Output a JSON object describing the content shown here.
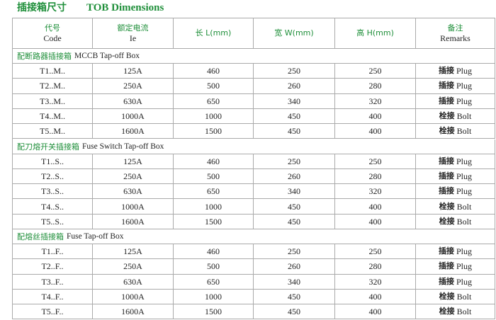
{
  "header": {
    "title_cn": "插接箱尺寸",
    "title_en": "TOB Dimensions"
  },
  "table": {
    "columns": [
      [
        "代号",
        "Code"
      ],
      [
        "额定电流",
        "Ie"
      ],
      [
        "长 L(mm)"
      ],
      [
        "宽 W(mm)"
      ],
      [
        "高 H(mm)"
      ],
      [
        "备注",
        "Remarks"
      ]
    ],
    "sections": [
      {
        "title_cn": "配断路器插接箱",
        "title_en": "MCCB Tap-off Box",
        "rows": [
          [
            "T1..M..",
            "125A",
            460,
            250,
            250,
            [
              "插接",
              "Plug"
            ]
          ],
          [
            "T2..M..",
            "250A",
            500,
            260,
            280,
            [
              "插接",
              "Plug"
            ]
          ],
          [
            "T3..M..",
            "630A",
            650,
            340,
            320,
            [
              "插接",
              "Plug"
            ]
          ],
          [
            "T4..M..",
            "1000A",
            1000,
            450,
            400,
            [
              "栓接",
              "Bolt"
            ]
          ],
          [
            "T5..M..",
            "1600A",
            1500,
            450,
            400,
            [
              "栓接",
              "Bolt"
            ]
          ]
        ]
      },
      {
        "title_cn": "配刀熔开关插接箱",
        "title_en": "Fuse Switch Tap-off Box",
        "rows": [
          [
            "T1..S..",
            "125A",
            460,
            250,
            250,
            [
              "插接",
              "Plug"
            ]
          ],
          [
            "T2..S..",
            "250A",
            500,
            260,
            280,
            [
              "插接",
              "Plug"
            ]
          ],
          [
            "T3..S..",
            "630A",
            650,
            340,
            320,
            [
              "插接",
              "Plug"
            ]
          ],
          [
            "T4..S..",
            "1000A",
            1000,
            450,
            400,
            [
              "栓接",
              "Bolt"
            ]
          ],
          [
            "T5..S..",
            "1600A",
            1500,
            450,
            400,
            [
              "栓接",
              "Bolt"
            ]
          ]
        ]
      },
      {
        "title_cn": "配熔丝插接箱",
        "title_en": "Fuse Tap-off Box",
        "rows": [
          [
            "T1..F..",
            "125A",
            460,
            250,
            250,
            [
              "插接",
              "Plug"
            ]
          ],
          [
            "T2..F..",
            "250A",
            500,
            260,
            280,
            [
              "插接",
              "Plug"
            ]
          ],
          [
            "T3..F..",
            "630A",
            650,
            340,
            320,
            [
              "插接",
              "Plug"
            ]
          ],
          [
            "T4..F..",
            "1000A",
            1000,
            450,
            400,
            [
              "栓接",
              "Bolt"
            ]
          ],
          [
            "T5..F..",
            "1600A",
            1500,
            450,
            400,
            [
              "栓接",
              "Bolt"
            ]
          ]
        ]
      }
    ]
  }
}
